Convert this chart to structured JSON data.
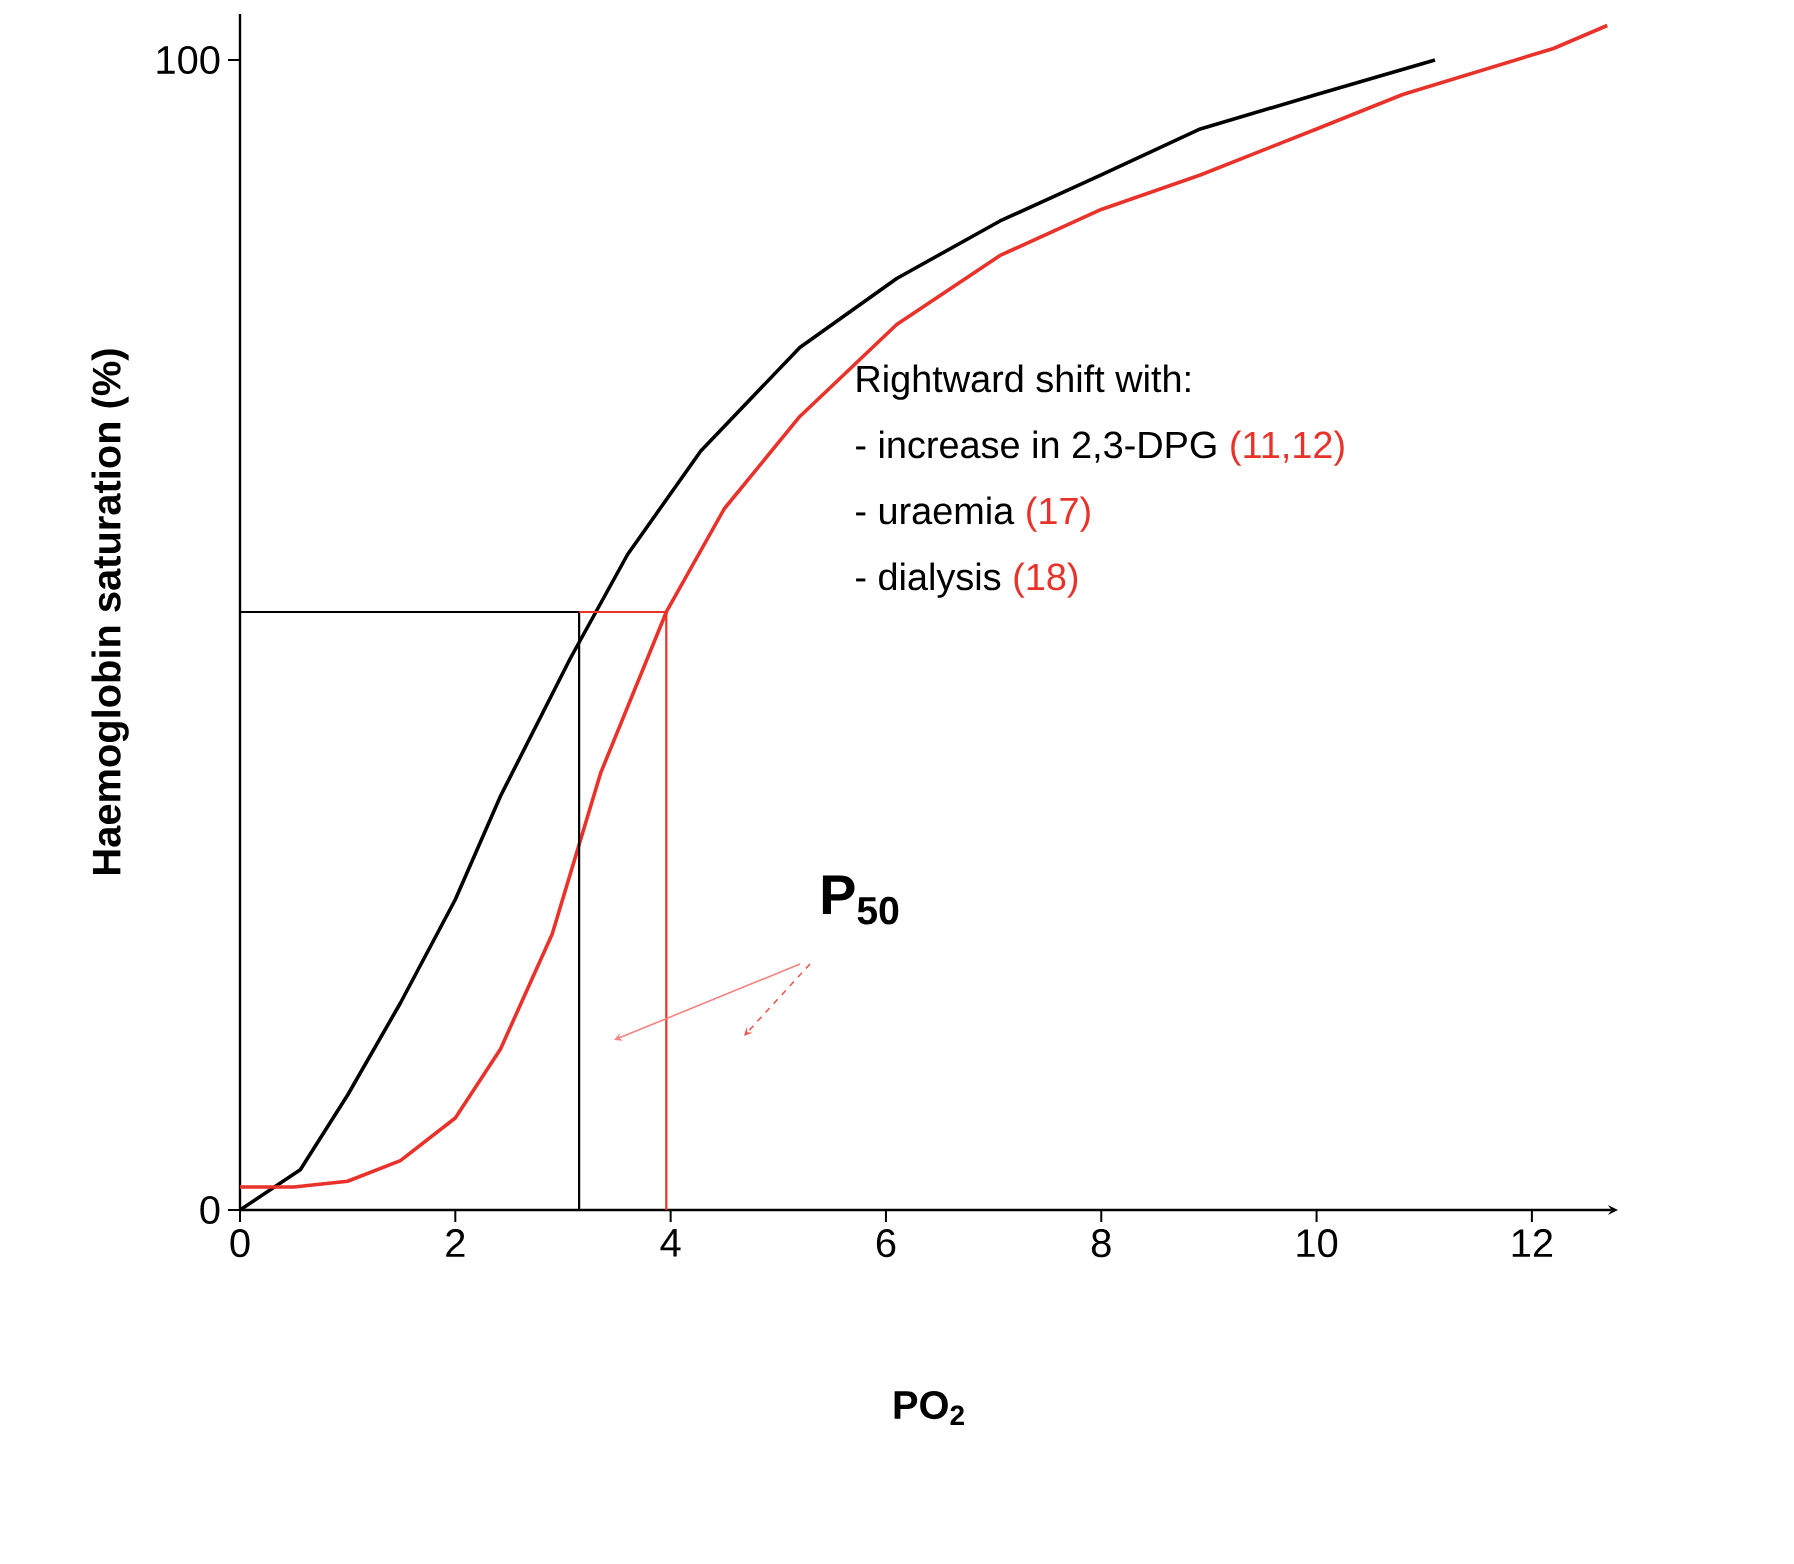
{
  "chart_data": {
    "type": "line",
    "xlabel": "**PO$_{2}$**",
    "ylabel": "**Haemoglobin saturation (%)**",
    "xlim": [
      0,
      12.8
    ],
    "ylim": [
      0,
      104
    ],
    "xticks": [
      0,
      2,
      4,
      6,
      8,
      10,
      12
    ],
    "yticks": [
      0,
      100
    ],
    "grid": false,
    "marker": "none",
    "line_style": "solid",
    "series": [
      {
        "color": "#000000",
        "x": [
          0,
          0.56,
          1.0,
          1.49,
          2.0,
          2.42,
          3.07,
          3.6,
          4.28,
          5.2,
          6.1,
          7.06,
          8.0,
          8.92,
          10.0,
          11.1
        ],
        "values": [
          0,
          3.5,
          10,
          18,
          27,
          36,
          48,
          57,
          66,
          75,
          81,
          86,
          90,
          94,
          97,
          100
        ]
      },
      {
        "color": "#e8322a",
        "x": [
          0,
          0.5,
          1.0,
          1.49,
          2.0,
          2.42,
          2.9,
          3.35,
          3.96,
          4.5,
          5.2,
          6.1,
          7.06,
          8.0,
          8.92,
          10.0,
          10.8,
          12.2,
          12.7
        ],
        "values": [
          2,
          2,
          2.5,
          4.3,
          8,
          14,
          24,
          38,
          52,
          61,
          69,
          77,
          83,
          87,
          90,
          94,
          97,
          101,
          103
        ]
      },
      {
        "color": "#000000",
        "x": [
          0,
          3.15,
          3.15
        ],
        "values": [
          52,
          52,
          0
        ]
      },
      {
        "color": "#e8322a",
        "x": [
          3.15,
          3.96,
          3.96
        ],
        "values": [
          52,
          52,
          0
        ]
      }
    ],
    "annotations": [
      "Rightward shift with:",
      "- increase in 2,3-DPG",
      "(11,12)",
      "- uraemia",
      "(17)",
      "- dialysis",
      "(18)",
      "**P$_{50}$**"
    ]
  }
}
